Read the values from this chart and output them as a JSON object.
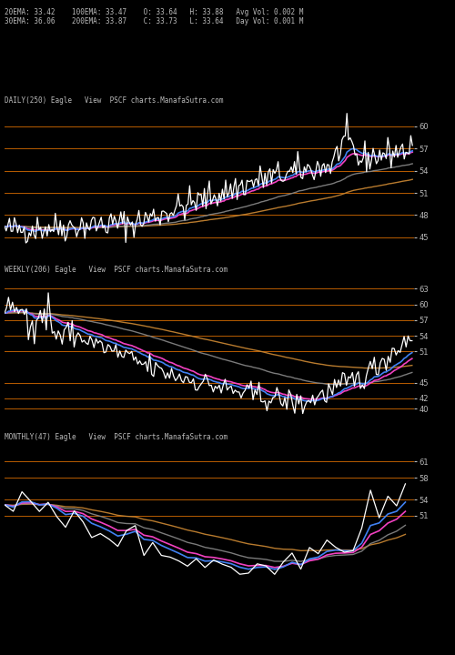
{
  "bg_color": "#000000",
  "title_info_line1": "20EMA: 33.42    100EMA: 33.47    O: 33.64   H: 33.88   Avg Vol: 0.002 M",
  "title_info_line2": "30EMA: 36.06    200EMA: 33.87    C: 33.73   L: 33.64   Day Vol: 0.001 M",
  "panel1_label": "DAILY(250) Eagle   View  PSCF charts.ManafaSutra.com",
  "panel2_label": "WEEKLY(206) Eagle   View  PSCF charts.ManafaSutra.com",
  "panel3_label": "MONTHLY(47) Eagle   View  PSCF charts.ManafaSutra.com",
  "panel1_hlines": [
    60,
    57,
    54,
    51,
    48,
    45
  ],
  "panel2_hlines": [
    63,
    60,
    57,
    54,
    51,
    45,
    42,
    40
  ],
  "panel3_hlines": [
    61,
    58,
    54,
    51
  ],
  "panel1_ylim": [
    43,
    62
  ],
  "panel2_ylim": [
    38,
    65
  ],
  "panel3_ylim": [
    38,
    64
  ],
  "hline_color": "#cc6600",
  "price_color": "#ffffff",
  "ema20_color": "#4488ff",
  "ema30_color": "#ff44cc",
  "ema100_color": "#888888",
  "ema200_color": "#cc8833",
  "label_color": "#bbbbbb",
  "tick_color": "#bbbbbb",
  "figsize": [
    5.0,
    7.2
  ],
  "dpi": 100
}
